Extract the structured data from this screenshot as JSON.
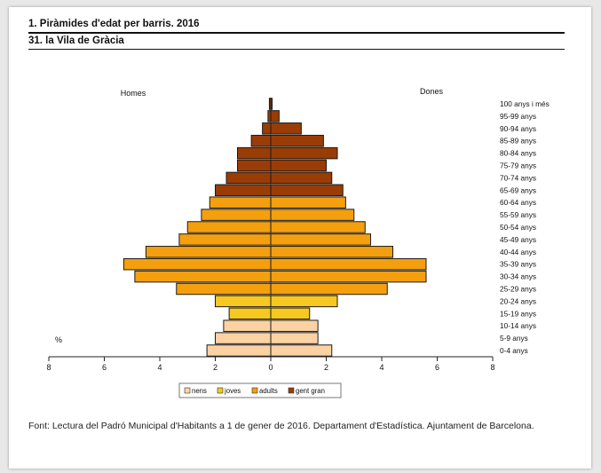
{
  "document": {
    "title": "1. Piràmides d'edat per barris. 2016",
    "subtitle": "31. la Vila de Gràcia",
    "footer": "Font: Lectura del Padró Municipal d'Habitants a 1 de gener de 2016. Departament d'Estadística. Ajuntament de Barcelona."
  },
  "chart_data": {
    "type": "bar",
    "orientation": "horizontal",
    "subtype": "population-pyramid",
    "left_label": "Homes",
    "right_label": "Dones",
    "unit_label": "%",
    "xlim": [
      -8,
      8
    ],
    "x_ticks": [
      -8,
      -6,
      -4,
      -2,
      0,
      2,
      4,
      6,
      8
    ],
    "x_tick_labels": [
      "8",
      "6",
      "4",
      "2",
      "0",
      "2",
      "4",
      "6",
      "8"
    ],
    "categories": [
      "0-4 anys",
      "5-9 anys",
      "10-14 anys",
      "15-19 anys",
      "20-24 anys",
      "25-29 anys",
      "30-34 anys",
      "35-39 anys",
      "40-44 anys",
      "45-49 anys",
      "50-54 anys",
      "55-59 anys",
      "60-64 anys",
      "65-69 anys",
      "70-74 anys",
      "75-79 anys",
      "80-84 anys",
      "85-89 anys",
      "90-94 anys",
      "95-99 anys",
      "100 anys i més"
    ],
    "groups": [
      "nens",
      "nens",
      "nens",
      "joves",
      "joves",
      "adults",
      "adults",
      "adults",
      "adults",
      "adults",
      "adults",
      "adults",
      "adults",
      "gent gran",
      "gent gran",
      "gent gran",
      "gent gran",
      "gent gran",
      "gent gran",
      "gent gran",
      "gent gran"
    ],
    "series": [
      {
        "name": "Homes",
        "values": [
          2.3,
          2.0,
          1.7,
          1.5,
          2.0,
          3.4,
          4.9,
          5.3,
          4.5,
          3.3,
          3.0,
          2.5,
          2.2,
          2.0,
          1.6,
          1.2,
          1.2,
          0.7,
          0.3,
          0.1,
          0.05
        ]
      },
      {
        "name": "Dones",
        "values": [
          2.2,
          1.7,
          1.7,
          1.4,
          2.4,
          4.2,
          5.6,
          5.6,
          4.4,
          3.6,
          3.4,
          3.0,
          2.7,
          2.6,
          2.2,
          2.0,
          2.4,
          1.9,
          1.1,
          0.3,
          0.05
        ]
      }
    ],
    "legend": [
      {
        "name": "nens",
        "color": "#fcd2a3"
      },
      {
        "name": "joves",
        "color": "#f7c81f"
      },
      {
        "name": "adults",
        "color": "#f49f0e"
      },
      {
        "name": "gent gran",
        "color": "#9a3c05"
      }
    ],
    "legend_position": "bottom-center"
  }
}
